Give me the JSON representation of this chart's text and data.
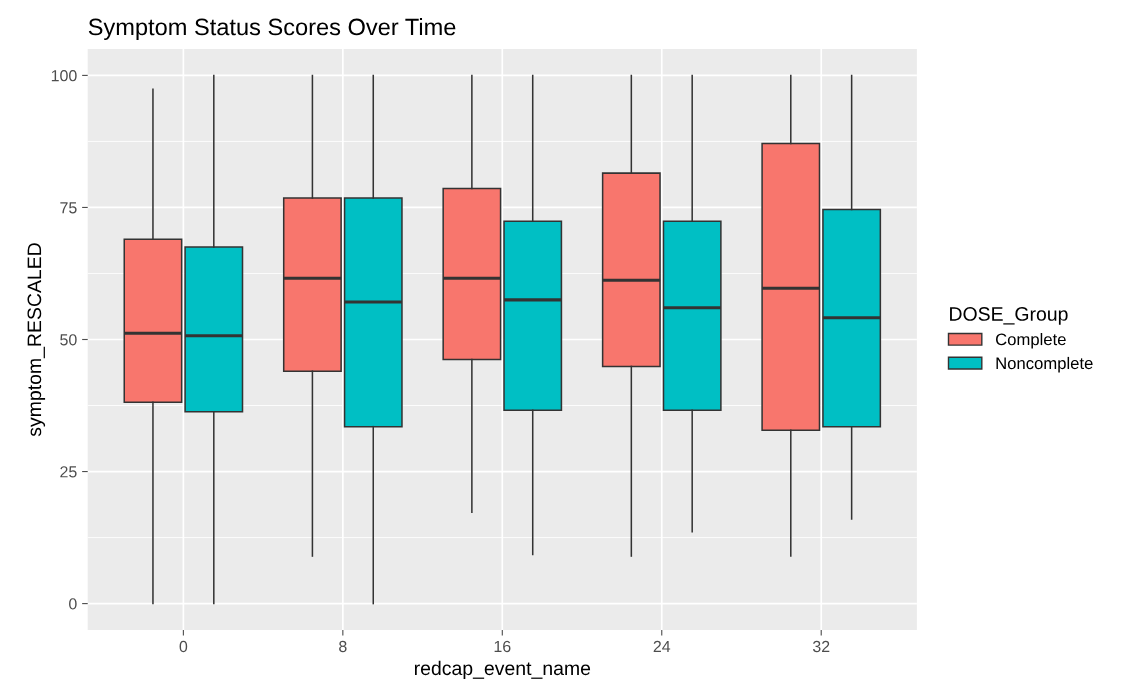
{
  "chart_data": {
    "type": "box",
    "title": "Symptom Status Scores Over Time",
    "xlabel": "redcap_event_name",
    "ylabel": "symptom_RESCALED",
    "legend_title": "DOSE_Group",
    "legend": "right",
    "grid": true,
    "categories": [
      "0",
      "8",
      "16",
      "24",
      "32"
    ],
    "ylim": [
      -5,
      105
    ],
    "yticks": [
      0,
      25,
      50,
      75,
      100
    ],
    "series": [
      {
        "name": "Complete",
        "color": "#f8766d",
        "boxes": [
          {
            "low": 0,
            "q1": 38.1,
            "median": 51.2,
            "q3": 69.0,
            "high": 97.4
          },
          {
            "low": 9.0,
            "q1": 44.0,
            "median": 61.6,
            "q3": 76.8,
            "high": 100
          },
          {
            "low": 17.3,
            "q1": 46.2,
            "median": 61.6,
            "q3": 78.6,
            "high": 100
          },
          {
            "low": 9.0,
            "q1": 44.9,
            "median": 61.2,
            "q3": 81.5,
            "high": 100
          },
          {
            "low": 9.0,
            "q1": 32.8,
            "median": 59.7,
            "q3": 87.1,
            "high": 100
          }
        ]
      },
      {
        "name": "Noncomplete",
        "color": "#00bfc4",
        "boxes": [
          {
            "low": 0,
            "q1": 36.3,
            "median": 50.7,
            "q3": 67.5,
            "high": 100
          },
          {
            "low": 0,
            "q1": 33.5,
            "median": 57.1,
            "q3": 76.8,
            "high": 100
          },
          {
            "low": 9.3,
            "q1": 36.6,
            "median": 57.5,
            "q3": 72.4,
            "high": 100
          },
          {
            "low": 13.6,
            "q1": 36.6,
            "median": 56.0,
            "q3": 72.4,
            "high": 100
          },
          {
            "low": 16.0,
            "q1": 33.5,
            "median": 54.1,
            "q3": 74.6,
            "high": 100
          }
        ]
      }
    ]
  }
}
